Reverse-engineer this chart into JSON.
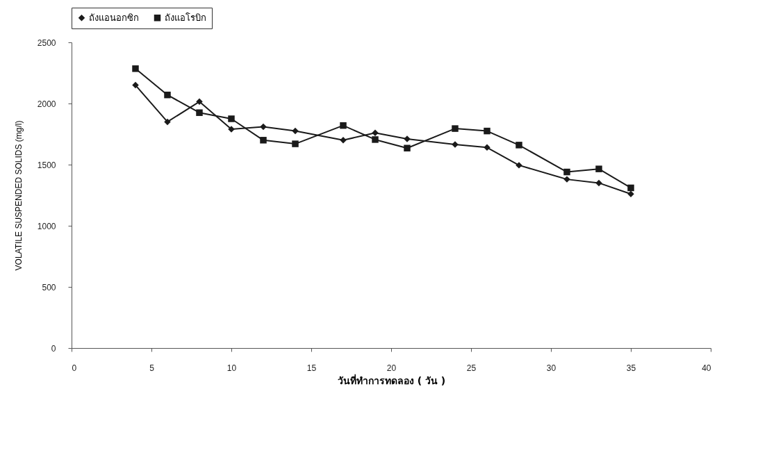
{
  "chart_data": {
    "type": "line",
    "xlabel": "วันที่ทำการทดลอง ( วัน )",
    "ylabel": "VOLATILE SUSPENDED SOLIDS (mg/l)",
    "x": [
      4,
      6,
      8,
      10,
      12,
      14,
      17,
      19,
      21,
      24,
      26,
      28,
      31,
      33,
      35
    ],
    "series": [
      {
        "name": "ถังแอนอกซิก",
        "color": "#1a1a1a",
        "marker": "diamond",
        "values": [
          2150,
          1850,
          2015,
          1790,
          1810,
          1775,
          1700,
          1760,
          1710,
          1665,
          1640,
          1495,
          1380,
          1350,
          1260
        ]
      },
      {
        "name": "ถังแอโรบิก",
        "color": "#1a1a1a",
        "marker": "square",
        "values": [
          2285,
          2070,
          1925,
          1875,
          1700,
          1670,
          1820,
          1705,
          1635,
          1795,
          1775,
          1660,
          1440,
          1465,
          1310
        ]
      }
    ],
    "xlim": [
      0,
      40
    ],
    "xticks": [
      0,
      5,
      10,
      15,
      20,
      25,
      30,
      35,
      40
    ],
    "ylim": [
      0,
      2500
    ],
    "yticks": [
      0,
      500,
      1000,
      1500,
      2000,
      2500
    ],
    "grid": false,
    "legend": "top",
    "line_style": "solid"
  }
}
